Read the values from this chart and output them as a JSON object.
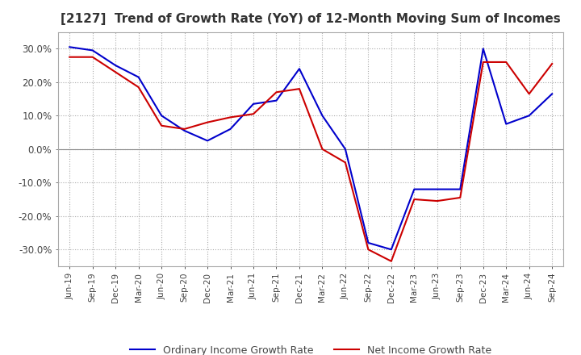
{
  "title": "[2127]  Trend of Growth Rate (YoY) of 12-Month Moving Sum of Incomes",
  "title_fontsize": 11,
  "ylim": [
    -0.35,
    0.35
  ],
  "yticks": [
    -0.3,
    -0.2,
    -0.1,
    0.0,
    0.1,
    0.2,
    0.3
  ],
  "background_color": "#ffffff",
  "grid_color": "#aaaaaa",
  "ordinary_color": "#0000cc",
  "net_color": "#cc0000",
  "legend_labels": [
    "Ordinary Income Growth Rate",
    "Net Income Growth Rate"
  ],
  "x_labels": [
    "Jun-19",
    "Sep-19",
    "Dec-19",
    "Mar-20",
    "Jun-20",
    "Sep-20",
    "Dec-20",
    "Mar-21",
    "Jun-21",
    "Sep-21",
    "Dec-21",
    "Mar-22",
    "Jun-22",
    "Sep-22",
    "Dec-22",
    "Mar-23",
    "Jun-23",
    "Sep-23",
    "Dec-23",
    "Mar-24",
    "Jun-24",
    "Sep-24"
  ],
  "ordinary_income_growth": [
    0.305,
    0.295,
    0.25,
    0.215,
    0.1,
    0.055,
    0.025,
    0.06,
    0.135,
    0.145,
    0.24,
    0.1,
    0.0,
    -0.28,
    -0.3,
    -0.12,
    -0.12,
    -0.12,
    0.3,
    0.075,
    0.1,
    0.165
  ],
  "net_income_growth": [
    0.275,
    0.275,
    0.23,
    0.185,
    0.07,
    0.06,
    0.08,
    0.095,
    0.105,
    0.17,
    0.18,
    0.0,
    -0.04,
    -0.3,
    -0.335,
    -0.15,
    -0.155,
    -0.145,
    0.26,
    0.26,
    0.165,
    0.255
  ]
}
